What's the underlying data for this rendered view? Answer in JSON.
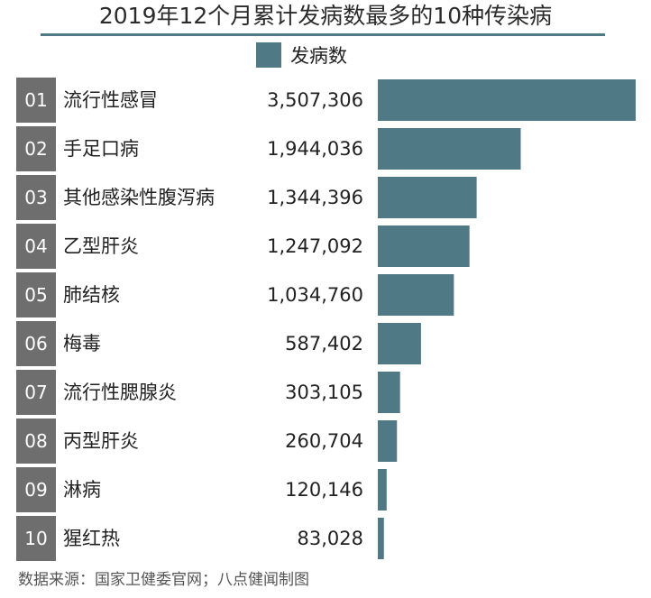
{
  "title": "2019年12个月累计发病数最多的10种传染病",
  "legend": {
    "label": "发病数"
  },
  "colors": {
    "bar": "#4f7a85",
    "rank_box": "#6e6e6e",
    "rank_text": "#ffffff"
  },
  "chart_data": {
    "type": "bar",
    "orientation": "horizontal",
    "series": [
      {
        "name": "发病数"
      }
    ],
    "ranks": [
      "01",
      "02",
      "03",
      "04",
      "05",
      "06",
      "07",
      "08",
      "09",
      "10"
    ],
    "categories": [
      "流行性感冒",
      "手足口病",
      "其他感染性腹泻病",
      "乙型肝炎",
      "肺结核",
      "梅毒",
      "流行性腮腺炎",
      "丙型肝炎",
      "淋病",
      "猩红热"
    ],
    "values": [
      3507306,
      1944036,
      1344396,
      1247092,
      1034760,
      587402,
      303105,
      260704,
      120146,
      83028
    ],
    "value_labels": [
      "3,507,306",
      "1,944,036",
      "1,344,396",
      "1,247,092",
      "1,034,760",
      "587,402",
      "303,105",
      "260,704",
      "120,146",
      "83,028"
    ]
  },
  "source": "数据来源：国家卫健委官网；八点健闻制图"
}
